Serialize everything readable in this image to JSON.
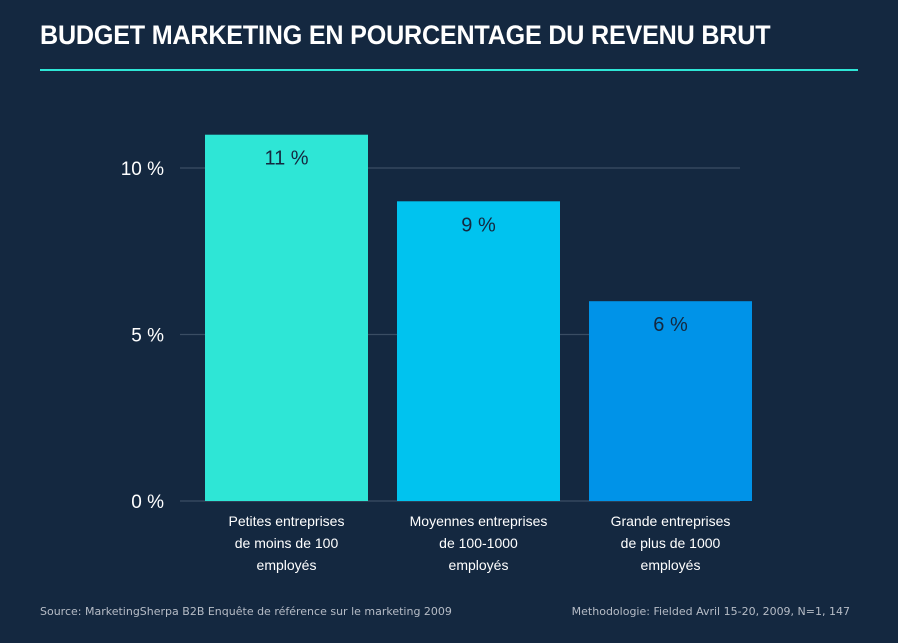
{
  "title": "BUDGET MARKETING EN POURCENTAGE DU REVENU BRUT",
  "footer": {
    "source": "Source: MarketingSherpa B2B Enquête de référence sur le marketing 2009",
    "methodology": "Methodologie: Fielded Avril 15-20, 2009, N=1, 147"
  },
  "chart_data": {
    "type": "bar",
    "categories": [
      [
        "Petites entreprises",
        "de moins de 100",
        "employés"
      ],
      [
        "Moyennes entreprises",
        "de 100-1000",
        "employés"
      ],
      [
        "Grande entreprises",
        "de plus de 1000",
        "employés"
      ]
    ],
    "values": [
      11,
      9,
      6
    ],
    "data_labels": [
      "11 %",
      "9 %",
      "6 %"
    ],
    "colors": [
      "#2ee6d6",
      "#00c3ef",
      "#0093e8"
    ],
    "yticks": [
      {
        "value": 0,
        "label": "0 %"
      },
      {
        "value": 5,
        "label": "5 %"
      },
      {
        "value": 10,
        "label": "10 %"
      }
    ],
    "ylim": [
      0,
      11
    ],
    "grid": true,
    "gridline_color": "#3a4d63",
    "label_color": "#ffffff",
    "value_label_color": "#14283f"
  }
}
